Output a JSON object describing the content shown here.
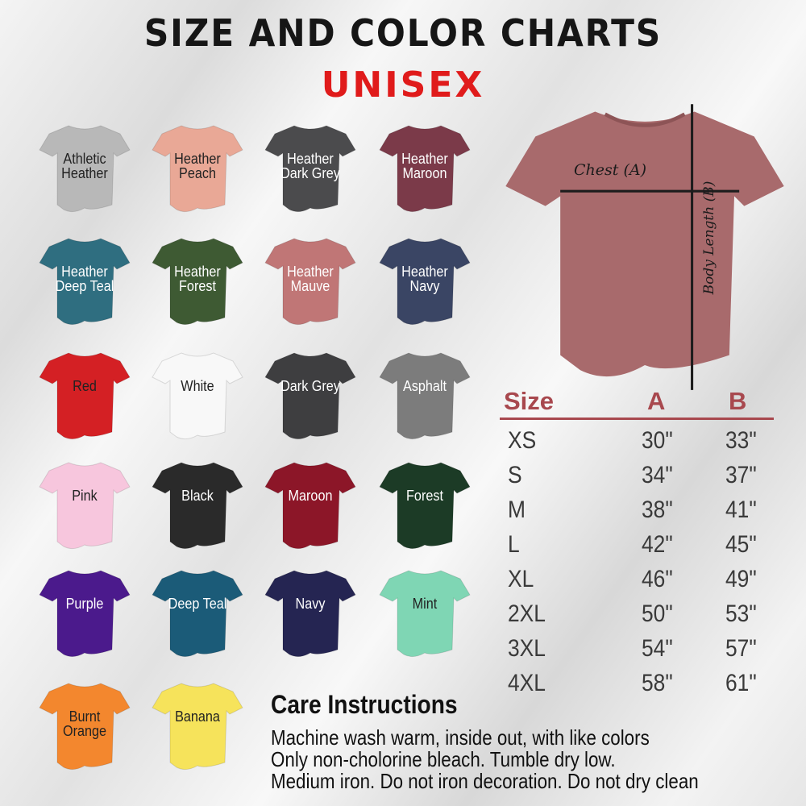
{
  "title": "SIZE AND COLOR CHARTS",
  "subtitle": "UNISEX",
  "colors": [
    {
      "name": "Athletic Heather",
      "hex": "#b8b8b8",
      "text": "#222"
    },
    {
      "name": "Heather Peach",
      "hex": "#e9a896",
      "text": "#222"
    },
    {
      "name": "Heather Dark Grey",
      "hex": "#4b4b4d",
      "text": "#fff"
    },
    {
      "name": "Heather Maroon",
      "hex": "#7b3a49",
      "text": "#fff"
    },
    {
      "name": "Heather Deep Teal",
      "hex": "#2f6e80",
      "text": "#fff"
    },
    {
      "name": "Heather Forest",
      "hex": "#3e5a33",
      "text": "#fff"
    },
    {
      "name": "Heather Mauve",
      "hex": "#c07676",
      "text": "#fff"
    },
    {
      "name": "Heather Navy",
      "hex": "#3a4564",
      "text": "#fff"
    },
    {
      "name": "Red",
      "hex": "#d42024",
      "text": "#222"
    },
    {
      "name": "White",
      "hex": "#f8f8f8",
      "text": "#222"
    },
    {
      "name": "Dark Grey",
      "hex": "#3e3e40",
      "text": "#fff"
    },
    {
      "name": "Asphalt",
      "hex": "#7c7c7c",
      "text": "#fff"
    },
    {
      "name": "Pink",
      "hex": "#f7c6dd",
      "text": "#222"
    },
    {
      "name": "Black",
      "hex": "#2a2a2a",
      "text": "#fff"
    },
    {
      "name": "Maroon",
      "hex": "#8c1628",
      "text": "#fff"
    },
    {
      "name": "Forest",
      "hex": "#1c3b26",
      "text": "#fff"
    },
    {
      "name": "Purple",
      "hex": "#4b1a8c",
      "text": "#fff"
    },
    {
      "name": "Deep Teal",
      "hex": "#1b5b78",
      "text": "#fff"
    },
    {
      "name": "Navy",
      "hex": "#252552",
      "text": "#fff"
    },
    {
      "name": "Mint",
      "hex": "#7fd6b4",
      "text": "#222"
    },
    {
      "name": "Burnt Orange",
      "hex": "#f3872e",
      "text": "#222"
    },
    {
      "name": "Banana",
      "hex": "#f6e35b",
      "text": "#222"
    }
  ],
  "diagram": {
    "shirt_color": "#a86a6c",
    "chest_label": "Chest (A)",
    "length_label": "Body Length (B)"
  },
  "size_table": {
    "headers": [
      "Size",
      "A",
      "B"
    ],
    "header_color": "#a8484e",
    "rows": [
      [
        "XS",
        "30\"",
        "33\""
      ],
      [
        "S",
        "34\"",
        "37\""
      ],
      [
        "M",
        "38\"",
        "41\""
      ],
      [
        "L",
        "42\"",
        "45\""
      ],
      [
        "XL",
        "46\"",
        "49\""
      ],
      [
        "2XL",
        "50\"",
        "53\""
      ],
      [
        "3XL",
        "54\"",
        "57\""
      ],
      [
        "4XL",
        "58\"",
        "61\""
      ]
    ]
  },
  "care": {
    "title": "Care Instructions",
    "lines": [
      "Machine wash warm, inside out, with like colors",
      "Only non-cholorine bleach. Tumble dry low.",
      "Medium iron. Do not iron decoration. Do not dry clean"
    ]
  }
}
